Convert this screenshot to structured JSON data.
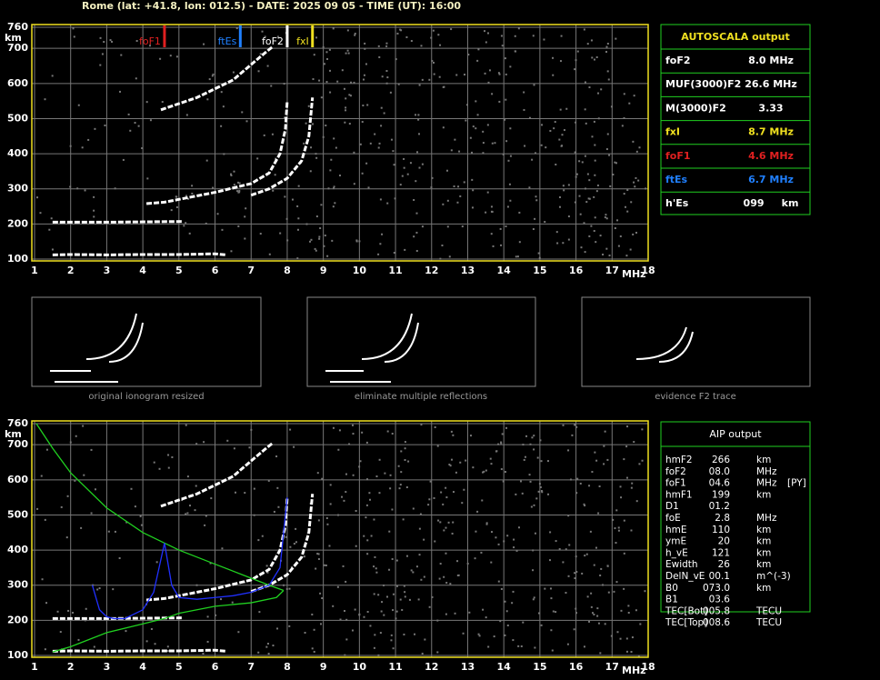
{
  "header": "Rome (lat: +41.8, lon: 012.5) - DATE: 2025 09 05 - TIME (UT): 16:00",
  "chart_data": [
    {
      "type": "ionogram",
      "xlabel": "MHz",
      "ylabel": "km",
      "xlim": [
        1,
        18
      ],
      "ylim": [
        100,
        760
      ],
      "xticks": [
        1,
        2,
        3,
        4,
        5,
        6,
        7,
        8,
        9,
        10,
        11,
        12,
        13,
        14,
        15,
        16,
        17,
        18
      ],
      "yticks": [
        100,
        200,
        300,
        400,
        500,
        600,
        700,
        760
      ],
      "grid": true,
      "markers": [
        {
          "name": "foF1",
          "value": 4.6,
          "color": "#e02020"
        },
        {
          "name": "ftEs",
          "value": 6.7,
          "color": "#2080ff"
        },
        {
          "name": "foF2",
          "value": 8.0,
          "color": "#ffffff"
        },
        {
          "name": "fxI",
          "value": 8.7,
          "color": "#f0e020"
        }
      ],
      "series": [
        {
          "color": "#ffffff",
          "x": [
            1.5,
            2,
            3,
            4,
            5,
            6,
            6.3
          ],
          "y": [
            112,
            113,
            112,
            113,
            113,
            115,
            112
          ]
        },
        {
          "color": "#ffffff",
          "x": [
            1.5,
            2,
            3,
            4,
            5.1
          ],
          "y": [
            205,
            205,
            205,
            206,
            207
          ]
        },
        {
          "color": "#ffffff",
          "x": [
            4.1,
            4.6,
            5,
            6,
            7,
            7.5,
            7.8,
            7.95,
            8.0
          ],
          "y": [
            258,
            262,
            270,
            290,
            315,
            345,
            400,
            470,
            550
          ]
        },
        {
          "color": "#ffffff",
          "x": [
            7,
            7.5,
            8,
            8.4,
            8.6,
            8.7
          ],
          "y": [
            282,
            300,
            330,
            380,
            450,
            560
          ]
        },
        {
          "color": "#ffffff",
          "x": [
            4.5,
            5.5,
            6.5,
            7.3,
            7.6
          ],
          "y": [
            525,
            560,
            610,
            680,
            705
          ]
        }
      ]
    },
    {
      "type": "ionogram",
      "xlabel": "MHz",
      "ylabel": "km",
      "xlim": [
        1,
        18
      ],
      "ylim": [
        100,
        760
      ],
      "xticks": [
        1,
        2,
        3,
        4,
        5,
        6,
        7,
        8,
        9,
        10,
        11,
        12,
        13,
        14,
        15,
        16,
        17,
        18
      ],
      "yticks": [
        100,
        200,
        300,
        400,
        500,
        600,
        700,
        760
      ],
      "grid": true,
      "markers": [],
      "series": [
        {
          "color": "#ffffff",
          "x": [
            1.5,
            2,
            3,
            4,
            5,
            6,
            6.3
          ],
          "y": [
            112,
            113,
            112,
            113,
            113,
            115,
            112
          ]
        },
        {
          "color": "#ffffff",
          "x": [
            1.5,
            2,
            3,
            4,
            5.1
          ],
          "y": [
            205,
            205,
            205,
            206,
            207
          ]
        },
        {
          "color": "#ffffff",
          "x": [
            4.1,
            4.6,
            5,
            6,
            7,
            7.5,
            7.8,
            7.95,
            8.0
          ],
          "y": [
            258,
            262,
            270,
            290,
            315,
            345,
            400,
            470,
            550
          ]
        },
        {
          "color": "#ffffff",
          "x": [
            7,
            7.5,
            8,
            8.4,
            8.6,
            8.7
          ],
          "y": [
            282,
            300,
            330,
            380,
            450,
            560
          ]
        },
        {
          "color": "#ffffff",
          "x": [
            4.5,
            5.5,
            6.5,
            7.3,
            7.6
          ],
          "y": [
            525,
            560,
            610,
            680,
            705
          ]
        },
        {
          "color": "#20d020",
          "x": [
            1.05,
            1.5,
            2,
            3,
            4,
            5,
            6,
            7,
            7.5,
            7.9
          ],
          "y": [
            760,
            690,
            620,
            520,
            450,
            400,
            360,
            320,
            300,
            285
          ]
        },
        {
          "color": "#20d020",
          "x": [
            7.9,
            7.7,
            7,
            6,
            5,
            4.6,
            4,
            3,
            2.5,
            2,
            1.5
          ],
          "y": [
            285,
            265,
            250,
            240,
            220,
            205,
            190,
            165,
            145,
            125,
            110
          ]
        },
        {
          "color": "#2030ff",
          "x": [
            2.6,
            2.8,
            3,
            3.2,
            3.5,
            4,
            4.3,
            4.6,
            4.8,
            5,
            5.5,
            6,
            6.5,
            7,
            7.5,
            7.8,
            8.0
          ],
          "y": [
            300,
            230,
            210,
            205,
            205,
            230,
            280,
            420,
            300,
            265,
            260,
            265,
            270,
            280,
            300,
            350,
            550
          ]
        }
      ]
    }
  ],
  "thumbnails": [
    "original ionogram resized",
    "eliminate multiple reflections",
    "evidence F2 trace"
  ],
  "autoscala": {
    "title": "AUTOSCALA output",
    "rows": [
      {
        "label": "foF2",
        "value": "8.0 MHz",
        "color": "#ffffff"
      },
      {
        "label": "MUF(3000)F2",
        "value": "26.6 MHz",
        "color": "#ffffff"
      },
      {
        "label": "M(3000)F2",
        "value": "3.33",
        "color": "#ffffff"
      },
      {
        "label": "fxI",
        "value": "8.7 MHz",
        "color": "#f0e020"
      },
      {
        "label": "foF1",
        "value": "4.6 MHz",
        "color": "#e02020"
      },
      {
        "label": "ftEs",
        "value": "6.7 MHz",
        "color": "#2080ff"
      },
      {
        "label": "h'Es",
        "value": "099     km",
        "color": "#ffffff"
      }
    ]
  },
  "aip": {
    "title": "AIP output",
    "rows": [
      [
        "hmF2",
        "266",
        "km",
        ""
      ],
      [
        "foF2",
        "08.0",
        "MHz",
        ""
      ],
      [
        "foF1",
        "04.6",
        "MHz",
        "[PY]"
      ],
      [
        "hmF1",
        "199",
        "km",
        ""
      ],
      [
        "D1",
        "01.2",
        "",
        ""
      ],
      [
        "foE",
        "2.8",
        "MHz",
        ""
      ],
      [
        "hmE",
        "110",
        "km",
        ""
      ],
      [
        "ymE",
        "20",
        "km",
        ""
      ],
      [
        "h_vE",
        "121",
        "km",
        ""
      ],
      [
        "Ewidth",
        "26",
        "km",
        ""
      ],
      [
        "DelN_vE",
        "00.1",
        "m^(-3)",
        ""
      ],
      [
        "B0",
        "073.0",
        "km",
        ""
      ],
      [
        "B1",
        "03.6",
        "",
        ""
      ],
      [
        "TEC[Bot]",
        "005.8",
        "TECU",
        ""
      ],
      [
        "TEC[Top]",
        "008.6",
        "TECU",
        ""
      ]
    ]
  }
}
